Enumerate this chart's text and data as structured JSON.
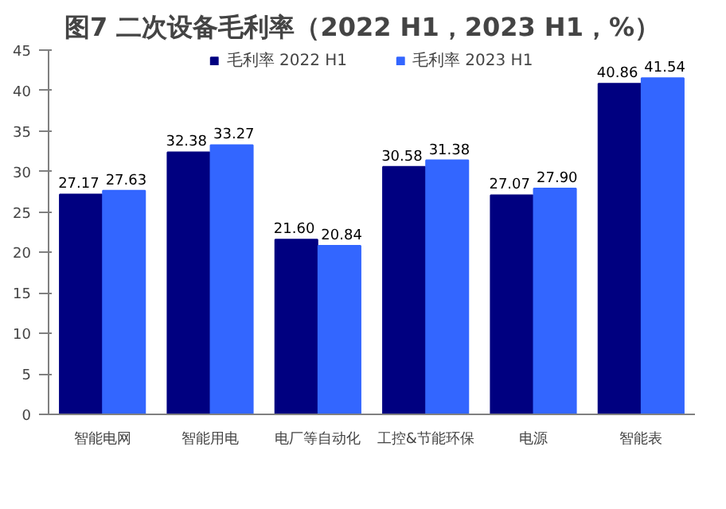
{
  "chart_data": {
    "type": "bar",
    "title": "图7  二次设备毛利率（2022 H1，2023 H1，%）",
    "categories": [
      "智能电网",
      "智能用电",
      "电厂等自动化",
      "工控&节能环保",
      "电源",
      "智能表"
    ],
    "series": [
      {
        "name": "毛利率 2022 H1",
        "color": "#000080",
        "values": [
          27.17,
          32.38,
          21.6,
          30.58,
          27.07,
          40.86
        ],
        "value_labels": [
          "27.17",
          "32.38",
          "21.60",
          "30.58",
          "27.07",
          "40.86"
        ]
      },
      {
        "name": "毛利率 2023 H1",
        "color": "#3366ff",
        "values": [
          27.63,
          33.27,
          20.84,
          31.38,
          27.9,
          41.54
        ],
        "value_labels": [
          "27.63",
          "33.27",
          "20.84",
          "31.38",
          "27.90",
          "41.54"
        ]
      }
    ],
    "ylim": [
      0,
      45
    ],
    "yticks": [
      0,
      5,
      10,
      15,
      20,
      25,
      30,
      35,
      40,
      45
    ],
    "grid": false,
    "legend": "top"
  }
}
